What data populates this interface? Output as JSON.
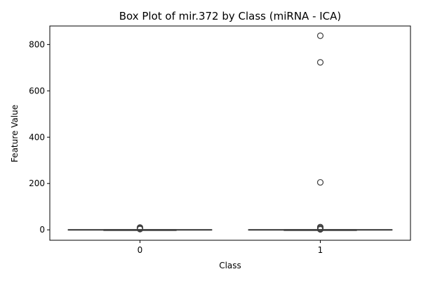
{
  "chart_data": {
    "type": "box",
    "title": "Box Plot of mir.372 by Class (miRNA - ICA)",
    "xlabel": "Class",
    "ylabel": "Feature Value",
    "categories": [
      "0",
      "1"
    ],
    "ylim": [
      -45,
      880
    ],
    "yticks": [
      0,
      200,
      400,
      600,
      800
    ],
    "grid": false,
    "legend": "none",
    "box_color": "#4c72b0",
    "line_color": "#3f3f3f",
    "boxes": [
      {
        "category": "0",
        "whisker_low": -1,
        "q1": -0.5,
        "median": 0,
        "q3": 0.5,
        "whisker_high": 1,
        "outliers": [
          3,
          5,
          8,
          10
        ]
      },
      {
        "category": "1",
        "whisker_low": -1,
        "q1": -0.5,
        "median": 0,
        "q3": 0.5,
        "whisker_high": 1,
        "outliers": [
          2,
          5,
          9,
          12,
          205,
          723,
          838
        ]
      }
    ]
  }
}
